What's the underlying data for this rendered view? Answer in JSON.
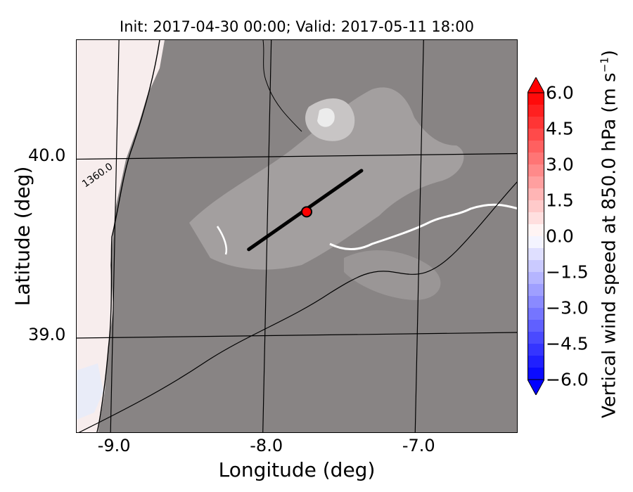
{
  "chart_data": {
    "type": "heatmap",
    "title": "Init: 2017-04-30 00:00; Valid: 2017-05-11 18:00",
    "xlabel": "Longitude (deg)",
    "ylabel": "Latitude (deg)",
    "xlim": [
      -9.25,
      -6.35
    ],
    "ylim": [
      38.45,
      40.65
    ],
    "x_ticks": [
      "-9.0",
      "-8.0",
      "-7.0"
    ],
    "y_ticks": [
      "40.0",
      "39.0"
    ],
    "grid": true,
    "contour_label": "1360.0",
    "colorbar": {
      "label_main": "Vertical wind speed at 850.0 hPa (m s",
      "label_exp": "−1",
      "label_close": ")",
      "range": [
        -6.0,
        6.0
      ],
      "ticks": [
        "6.0",
        "4.5",
        "3.0",
        "1.5",
        "0.0",
        "−1.5",
        "−3.0",
        "−4.5",
        "−6.0"
      ],
      "extend": "both",
      "colors": {
        "negative": "#0000ff",
        "zero": "#ffffff",
        "positive": "#ff0000"
      }
    },
    "cross_section_line": {
      "start": [
        -8.12,
        39.48
      ],
      "end": [
        -7.38,
        39.92
      ],
      "color": "#000000"
    },
    "marker": {
      "lon": -7.74,
      "lat": 39.69,
      "color": "#ff0000"
    }
  }
}
